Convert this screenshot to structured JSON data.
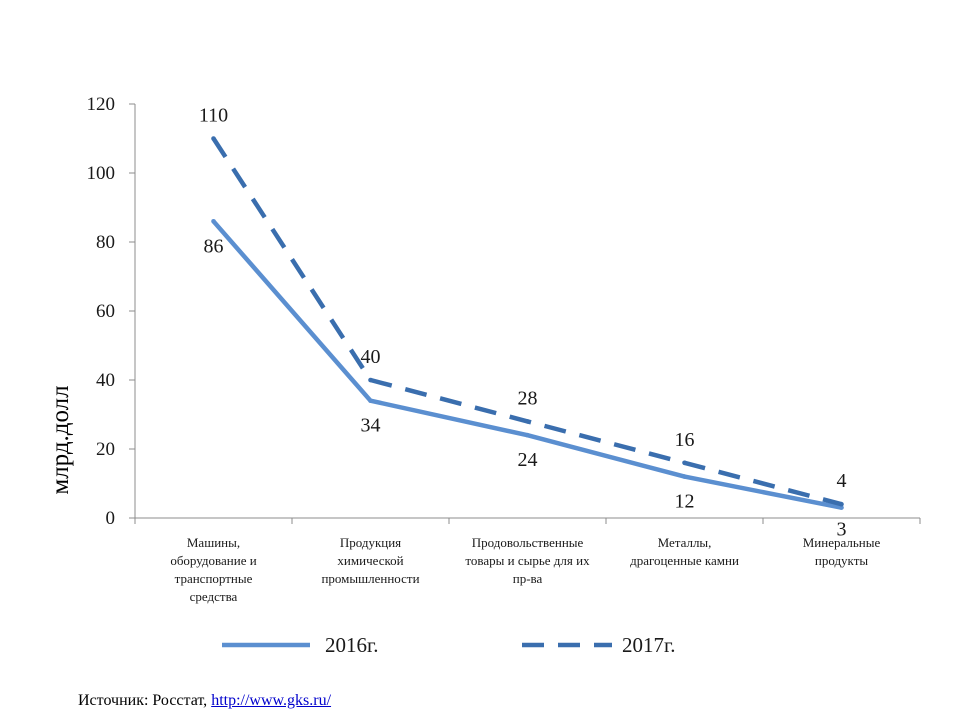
{
  "chart_data": {
    "type": "line",
    "ylabel": "млрд.долл",
    "xlabel": "",
    "ylim": [
      0,
      120
    ],
    "yticks": [
      0,
      20,
      40,
      60,
      80,
      100,
      120
    ],
    "categories": [
      [
        "Машины,",
        "оборудование и",
        "транспортные",
        "средства"
      ],
      [
        "Продукция",
        "химической",
        "промышленности"
      ],
      [
        "Продовольственные",
        "товары и сырье для их",
        "пр-ва"
      ],
      [
        "Металлы,",
        "драгоценные камни"
      ],
      [
        "Минеральные",
        "продукты"
      ]
    ],
    "series": [
      {
        "name": "2016г.",
        "values": [
          86,
          34,
          24,
          12,
          3
        ],
        "color": "#5b8fd0",
        "style": "solid"
      },
      {
        "name": "2017г.",
        "values": [
          110,
          40,
          28,
          16,
          4
        ],
        "color": "#3a6eae",
        "style": "dashed"
      }
    ],
    "legend_position": "bottom",
    "grid": false
  },
  "source": {
    "label": "Источник: Росстат,",
    "link": "http://www.gks.ru/"
  }
}
